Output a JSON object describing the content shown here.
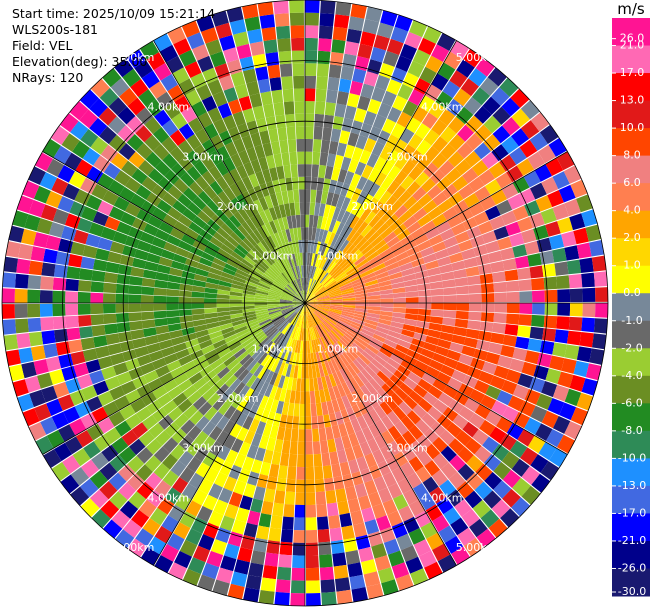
{
  "info": {
    "start_time": "Start time: 2025/10/09 15:21:14",
    "station": "WLS200s-181",
    "field": "Field: VEL",
    "elevation": "Elevation(deg): 35.00",
    "nrays": "NRays: 120"
  },
  "chart_data": {
    "type": "heatmap",
    "projection": "polar (PPI)",
    "field": "VEL",
    "units": "m/s",
    "n_rays": 120,
    "elevation_deg": 35.0,
    "max_range_km": 5.0,
    "range_ring_km": [
      1,
      2,
      3,
      4,
      5
    ],
    "range_ring_labels": [
      "1.00km",
      "2.00km",
      "3.00km",
      "4.00km",
      "5.00km"
    ],
    "colorbar": {
      "unit_label": "m/s",
      "ticks": [
        "26.0",
        "21.0",
        "17.0",
        "13.0",
        "10.0",
        "8.0",
        "6.0",
        "4.0",
        "2.0",
        "1.0",
        "0.0",
        "-1.0",
        "-2.0",
        "-4.0",
        "-6.0",
        "-8.0",
        "-10.0",
        "-13.0",
        "-17.0",
        "-21.0",
        "-26.0",
        "-30.0"
      ],
      "colors": [
        "#ff1493",
        "#ff69b4",
        "#ff0000",
        "#e11919",
        "#ff4500",
        "#f08080",
        "#ff7f50",
        "#ffa500",
        "#ffd700",
        "#ffff00",
        "#778899",
        "#696969",
        "#9acd32",
        "#6b8e23",
        "#228b22",
        "#2e8b57",
        "#1e90ff",
        "#4169e1",
        "#0000ff",
        "#00008b",
        "#191970"
      ]
    },
    "pattern": "receding (positive) velocities toward the east/south-east up to about 8 m/s; approaching (negative) velocities toward the west/north-west down to about -6 m/s; noisy random values beyond about 3.5 km range"
  }
}
